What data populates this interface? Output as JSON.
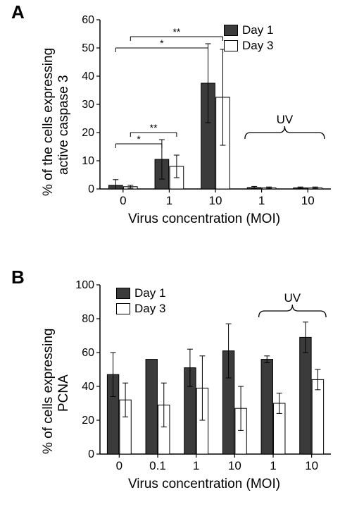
{
  "colors": {
    "bar_filled": "#3b3b3b",
    "bar_open": "#ffffff",
    "bar_border": "#000000",
    "axis": "#000000",
    "background": "#ffffff",
    "text": "#000000"
  },
  "typography": {
    "axis_label_fontsize": 19,
    "tick_label_fontsize": 17,
    "panel_label_fontsize": 26,
    "legend_fontsize": 17,
    "sig_fontsize": 15,
    "font_family": "Arial"
  },
  "panel_A": {
    "label": "A",
    "type": "bar",
    "ylabel_line1": "% of the cells expressing",
    "ylabel_line2": "active caspase 3",
    "xlabel": "Virus concentration (MOI)",
    "ylim": [
      0,
      60
    ],
    "ytick_step": 10,
    "yticks": [
      0,
      10,
      20,
      30,
      40,
      50,
      60
    ],
    "categories": [
      "0",
      "1",
      "10",
      "1",
      "10"
    ],
    "uv_group": {
      "label": "UV",
      "indices": [
        3,
        4
      ]
    },
    "series": [
      {
        "name": "Day 1",
        "color": "#3b3b3b",
        "values": [
          1.3,
          10.5,
          37.5,
          0.5,
          0.4
        ],
        "err": [
          2.0,
          7.0,
          14.0,
          0.4,
          0.3
        ]
      },
      {
        "name": "Day 3",
        "color": "#ffffff",
        "values": [
          0.8,
          8.0,
          32.5,
          0.4,
          0.4
        ],
        "err": [
          0.5,
          4.0,
          17.0,
          0.3,
          0.3
        ]
      }
    ],
    "significance": [
      {
        "from_group": 0,
        "to_group": 1,
        "y": 16,
        "label": "*",
        "series": 0
      },
      {
        "from_group": 0,
        "to_group": 1,
        "y": 20,
        "label": "**",
        "series": 1
      },
      {
        "from_group": 0,
        "to_group": 2,
        "y": 50,
        "label": "*",
        "series": 0
      },
      {
        "from_group": 0,
        "to_group": 2,
        "y": 54,
        "label": "**",
        "series": 1
      }
    ],
    "bar_group_width": 0.6,
    "bar_gap": 0.02
  },
  "panel_B": {
    "label": "B",
    "type": "bar",
    "ylabel_line1": "% of cells expressing",
    "ylabel_line2": "PCNA",
    "xlabel": "Virus concentration (MOI)",
    "ylim": [
      0,
      100
    ],
    "ytick_step": 20,
    "yticks": [
      0,
      20,
      40,
      60,
      80,
      100
    ],
    "categories": [
      "0",
      "0.1",
      "1",
      "10",
      "1",
      "10"
    ],
    "uv_group": {
      "label": "UV",
      "indices": [
        4,
        5
      ]
    },
    "series": [
      {
        "name": "Day 1",
        "color": "#3b3b3b",
        "values": [
          47,
          56,
          51,
          61,
          56,
          69
        ],
        "err": [
          13,
          0,
          11,
          16,
          2,
          9
        ]
      },
      {
        "name": "Day 3",
        "color": "#ffffff",
        "values": [
          32,
          29,
          39,
          27,
          30,
          44
        ],
        "err": [
          10,
          13,
          19,
          13,
          6,
          6
        ]
      }
    ],
    "bar_group_width": 0.6,
    "bar_gap": 0.02
  },
  "legend_labels": {
    "day1": "Day 1",
    "day3": "Day 3"
  }
}
